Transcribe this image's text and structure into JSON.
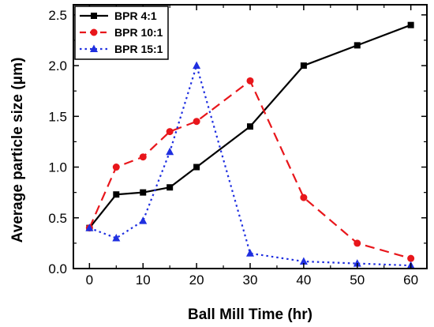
{
  "chart_data": {
    "type": "line",
    "title": "",
    "xlabel": "Ball Mill Time (hr)",
    "ylabel": "Average particle size (μm)",
    "xlim": [
      -3,
      63
    ],
    "ylim": [
      0,
      2.6
    ],
    "xticks": [
      0,
      10,
      20,
      30,
      40,
      50,
      60
    ],
    "yticks": [
      0.0,
      0.5,
      1.0,
      1.5,
      2.0,
      2.5
    ],
    "ytick_labels": [
      "0.0",
      "0.5",
      "1.0",
      "1.5",
      "2.0",
      "2.5"
    ],
    "grid": false,
    "legend_position": "top-left",
    "series": [
      {
        "name": "BPR 4:1",
        "color": "#000000",
        "line_style": "solid",
        "marker": "square",
        "x": [
          0,
          5,
          10,
          15,
          20,
          30,
          40,
          50,
          60
        ],
        "y": [
          0.4,
          0.73,
          0.75,
          0.8,
          1.0,
          1.4,
          2.0,
          2.2,
          2.4
        ]
      },
      {
        "name": "BPR 10:1",
        "color": "#e8161b",
        "line_style": "dashed",
        "marker": "circle",
        "x": [
          0,
          5,
          10,
          15,
          20,
          30,
          40,
          50,
          60
        ],
        "y": [
          0.4,
          1.0,
          1.1,
          1.35,
          1.45,
          1.85,
          0.7,
          0.25,
          0.1
        ]
      },
      {
        "name": "BPR 15:1",
        "color": "#1f2fe0",
        "line_style": "dotted",
        "marker": "triangle",
        "x": [
          0,
          5,
          10,
          15,
          20,
          30,
          40,
          50,
          60
        ],
        "y": [
          0.4,
          0.3,
          0.47,
          1.15,
          2.0,
          0.15,
          0.07,
          0.05,
          0.03
        ]
      }
    ]
  }
}
